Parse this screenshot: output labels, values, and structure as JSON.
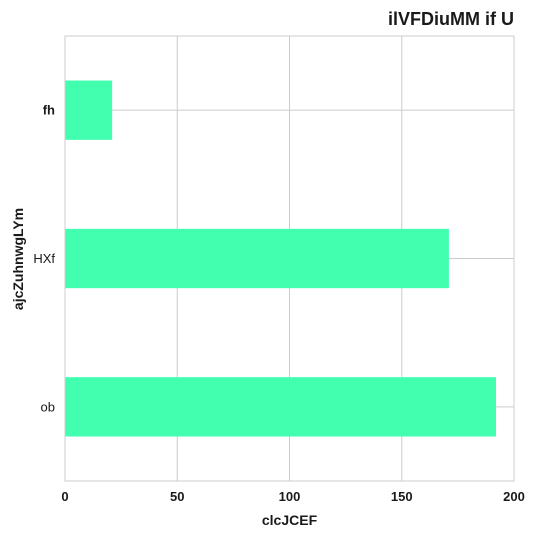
{
  "chart_data": {
    "type": "bar",
    "orientation": "horizontal",
    "title": "ilVFDiuMM if U",
    "xlabel": "clcJCEF",
    "ylabel": "ajcZuhnwgLYm",
    "categories": [
      "fh",
      "HXf",
      "ob"
    ],
    "values": [
      21,
      171,
      192
    ],
    "xlim": [
      0,
      200
    ],
    "xticks": [
      "0",
      "50",
      "100",
      "150",
      "200"
    ],
    "grid": true,
    "bar_color": "#42ffb0"
  }
}
